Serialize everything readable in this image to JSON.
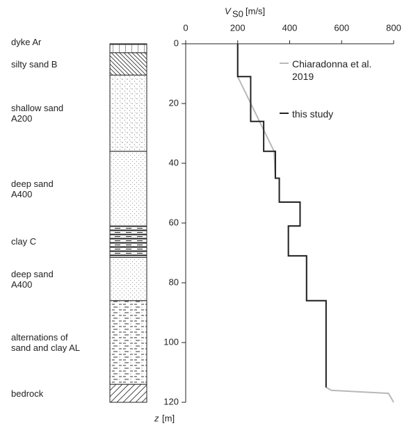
{
  "chart_data": {
    "type": "line",
    "xlabel": "V",
    "xlabel_sub": "S0",
    "xlabel_unit": "[m/s]",
    "ylabel": "z",
    "ylabel_unit": "[m]",
    "xlim": [
      0,
      800
    ],
    "xticks": [
      0,
      200,
      400,
      600,
      800
    ],
    "ylim": [
      0,
      120
    ],
    "yticks": [
      0,
      20,
      40,
      60,
      80,
      100,
      120
    ],
    "y_inverted": true,
    "x_axis_position": "top",
    "series": [
      {
        "name": "Chiaradonna et al.\n2019",
        "color": "#b8b8b8",
        "x": [
          200,
          200,
          340,
          345,
          360,
          360,
          440,
          440,
          395,
          395,
          465,
          465,
          540,
          540,
          560,
          780,
          800
        ],
        "values": [
          0,
          11,
          36,
          45,
          45,
          53,
          53,
          61,
          61,
          71,
          71,
          86,
          86,
          115,
          116,
          117,
          120
        ]
      },
      {
        "name": "this study",
        "color": "#222222",
        "x": [
          200,
          200,
          250,
          250,
          300,
          300,
          345,
          345,
          360,
          360,
          440,
          440,
          395,
          395,
          465,
          465,
          540,
          540
        ],
        "values": [
          0,
          11,
          11,
          26,
          26,
          36,
          36,
          45,
          45,
          53,
          53,
          61,
          61,
          71,
          71,
          86,
          86,
          115
        ]
      }
    ],
    "layers": [
      {
        "name": "dyke Ar",
        "top": 0,
        "bottom": 3
      },
      {
        "name": "silty sand B",
        "top": 3,
        "bottom": 10.5
      },
      {
        "name": "shallow sand\nA200",
        "top": 10.5,
        "bottom": 36
      },
      {
        "name": "deep sand\nA400",
        "top": 36,
        "bottom": 61
      },
      {
        "name": "clay C",
        "top": 61,
        "bottom": 71.5
      },
      {
        "name": "deep sand\nA400",
        "top": 71.5,
        "bottom": 86
      },
      {
        "name": "alternations of\nsand and clay AL",
        "top": 86,
        "bottom": 114
      },
      {
        "name": "bedrock",
        "top": 114,
        "bottom": 120
      }
    ]
  }
}
